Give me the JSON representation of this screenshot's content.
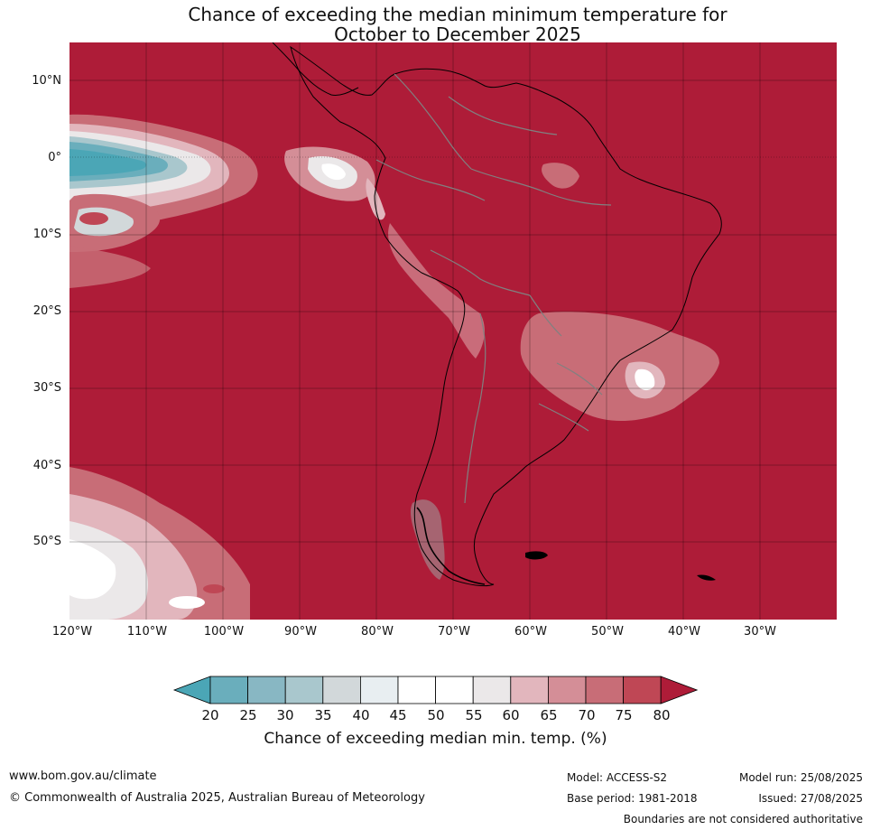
{
  "title": {
    "line1": "Chance of exceeding the median minimum temperature for",
    "line2": "October to December 2025"
  },
  "map": {
    "lat_labels": [
      "10°N",
      "0°",
      "10°S",
      "20°S",
      "30°S",
      "40°S",
      "50°S"
    ],
    "lon_labels": [
      "120°W",
      "110°W",
      "100°W",
      "90°W",
      "80°W",
      "70°W",
      "60°W",
      "50°W",
      "40°W",
      "30°W"
    ],
    "dominant_category": "80+",
    "colors": {
      "sea_land_high": "#ae1c38",
      "coast": "#000000",
      "borders": "#808080",
      "grid": "#000000"
    }
  },
  "colorbar": {
    "ticks": [
      "20",
      "25",
      "30",
      "35",
      "40",
      "45",
      "50",
      "55",
      "60",
      "65",
      "70",
      "75",
      "80"
    ],
    "colors": [
      "#4ba6b6",
      "#6aaebc",
      "#88b7c3",
      "#a9c7cd",
      "#d2d8da",
      "#e8eef1",
      "#ffffff",
      "#ffffff",
      "#ebe8e9",
      "#e2b6bd",
      "#d48e97",
      "#c86d77",
      "#bf4755",
      "#ae1c38"
    ],
    "label": "Chance of exceeding median min. temp. (%)"
  },
  "footer": {
    "website": "www.bom.gov.au/climate",
    "copyright": "© Commonwealth of Australia 2025, Australian Bureau of Meteorology",
    "model": "Model: ACCESS-S2",
    "base_period": "Base period: 1981-2018",
    "model_run": "Model run: 25/08/2025",
    "issued": "Issued: 27/08/2025",
    "disclaimer": "Boundaries are not considered authoritative"
  }
}
